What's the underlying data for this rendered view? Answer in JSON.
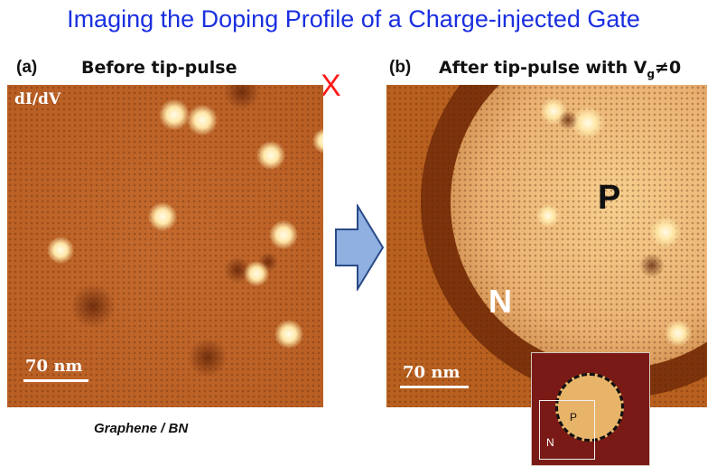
{
  "title": "Imaging the Doping Profile of a Charge-injected Gate",
  "panel_a": {
    "label": "(a)",
    "heading": "Before tip-pulse",
    "overlay_label": "dI/dV",
    "scale_label": "70 nm",
    "caption": "Graphene / BN",
    "mark": "X"
  },
  "panel_b": {
    "label": "(b)",
    "heading_prefix": "After tip-pulse with V",
    "heading_sub": "g",
    "heading_suffix": "≠0",
    "scale_label": "70 nm",
    "region_p": "P",
    "region_n": "N"
  },
  "inset": {
    "p_label": "P",
    "n_label": "N"
  },
  "arrow_color": "#8fb0e0",
  "title_color": "#1a2fe0",
  "mark_color": "#ff1a1a"
}
